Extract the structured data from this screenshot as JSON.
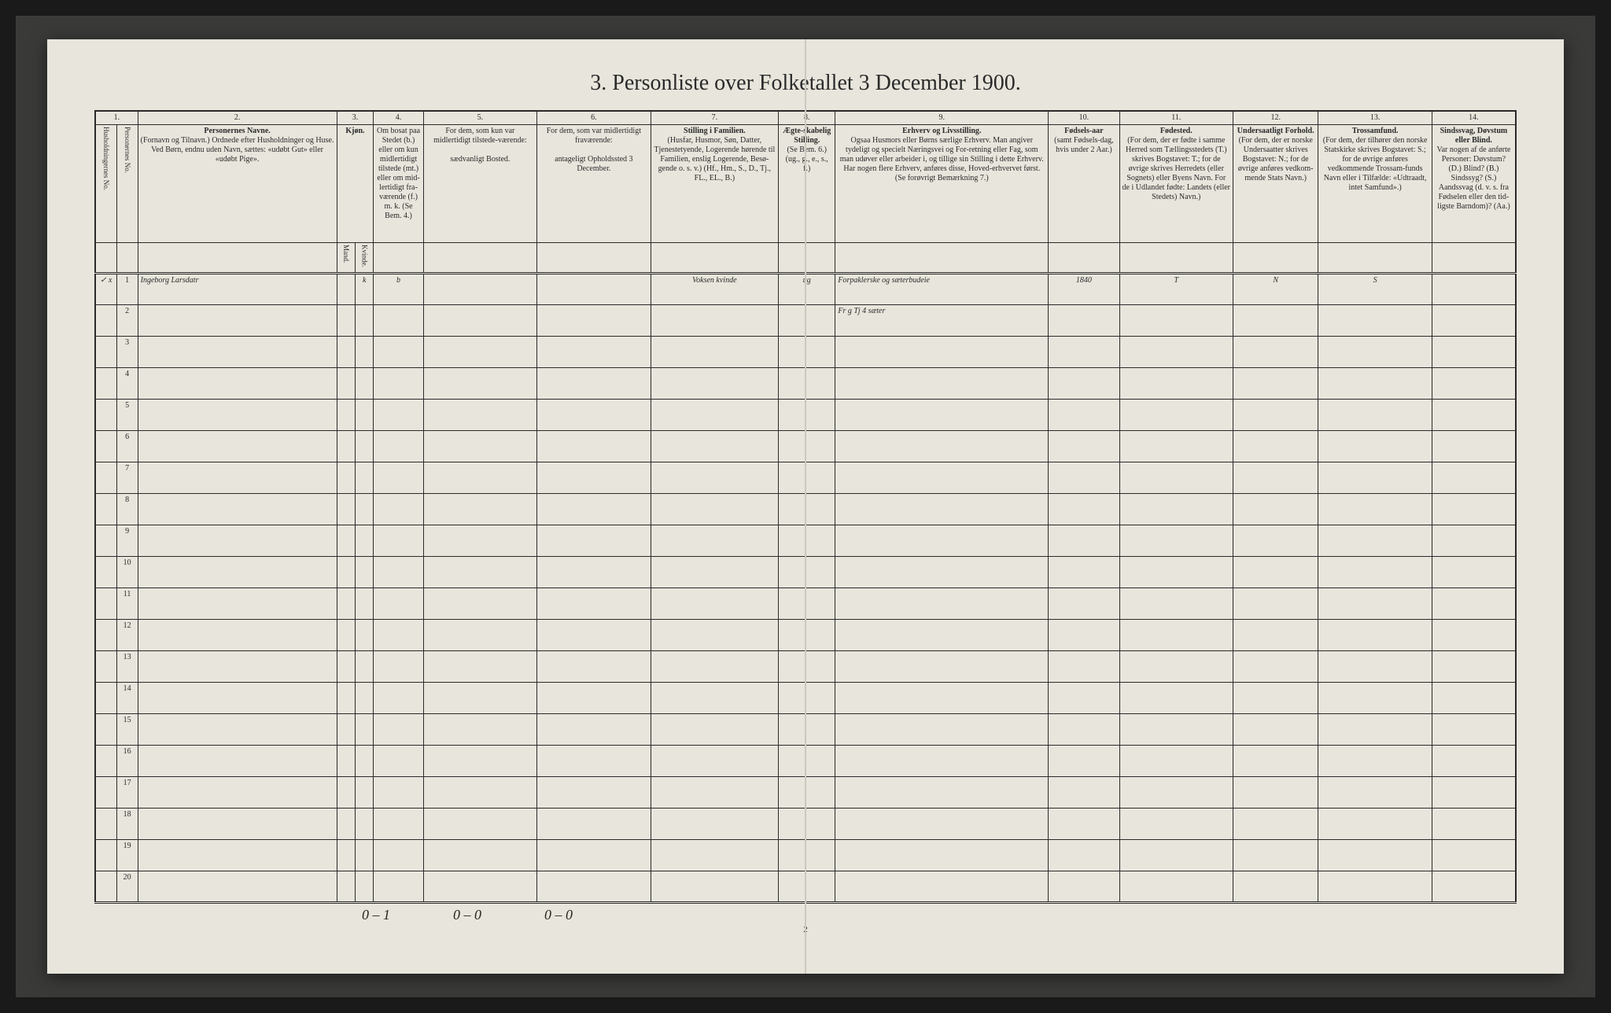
{
  "title": "3. Personliste over Folketallet 3 December 1900.",
  "page_number": "2",
  "columns": {
    "nums": [
      "1.",
      "2.",
      "3.",
      "4.",
      "5.",
      "6.",
      "7.",
      "8.",
      "9.",
      "10.",
      "11.",
      "12.",
      "13.",
      "14."
    ],
    "h1": "Husholdningernes No.",
    "h1b": "Personernes No.",
    "h2_title": "Personernes Navne.",
    "h2_sub": "(Fornavn og Tilnavn.)\nOrdnede efter Husholdninger og Huse. Ved Børn, endnu uden Navn, sættes: «udøbt Gut» eller «udøbt Pige».",
    "h3_title": "Kjøn.",
    "h3_sub": "Mand.",
    "h3_sub2": "Kvinde.",
    "h4_title": "Om bosat paa Stedet (b.) eller om kun midlertidigt tilstede (mt.) eller om mid-lertidigt fra-værende (f.)",
    "h4_sub": "m. k. (Se Bem. 4.)",
    "h5_title": "For dem, som kun var midlertidigt tilstede-værende:",
    "h5_sub": "sædvanligt Bosted.",
    "h6_title": "For dem, som var midlertidigt fraværende:",
    "h6_sub": "antageligt Opholdssted 3 December.",
    "h7_title": "Stilling i Familien.",
    "h7_sub": "(Husfar, Husmor, Søn, Datter, Tjenestetyende, Logerende hørende til Familien, enslig Logerende, Besø-gende o. s. v.)\n(Hf., Hm., S., D., Tj., FL., EL., B.)",
    "h8_title": "Ægte-skabelig Stilling.",
    "h8_sub": "(Se Bem. 6.)\n(ug., g., e., s., f.)",
    "h9_title": "Erhverv og Livsstilling.",
    "h9_sub": "Ogsaa Husmors eller Børns særlige Erhverv. Man angiver tydeligt og specielt Næringsvei og For-retning eller Fag, som man udøver eller arbeider i, og tillige sin Stilling i dette Erhverv. Har nogen flere Erhverv, anføres disse, Hoved-erhvervet først.\n(Se forøvrigt Bemærkning 7.)",
    "h10_title": "Fødsels-aar",
    "h10_sub": "(samt Fødsels-dag, hvis under 2 Aar.)",
    "h11_title": "Fødested.",
    "h11_sub": "(For dem, der er fødte i samme Herred som Tællingsstedets (T.) skrives Bogstavet: T.; for de øvrige skrives Herredets (eller Sognets) eller Byens Navn. For de i Udlandet fødte: Landets (eller Stedets) Navn.)",
    "h12_title": "Undersaatligt Forhold.",
    "h12_sub": "(For dem, der er norske Undersaatter skrives Bogstavet: N.; for de øvrige anføres vedkom-mende Stats Navn.)",
    "h13_title": "Trossamfund.",
    "h13_sub": "(For dem, der tilhører den norske Statskirke skrives Bogstavet: S.; for de øvrige anføres vedkommende Trossam-funds Navn eller i Tilfælde: «Udtraadt, intet Samfund».)",
    "h14_title": "Sindssvag, Døvstum eller Blind.",
    "h14_sub": "Var nogen af de anførte Personer: Døvstum? (D.) Blind? (B.) Sindssyg? (S.) Aandssvag (d. v. s. fra Fødselen eller den tid-ligste Barndom)? (Aa.)"
  },
  "rows": [
    {
      "mark": "✓ x",
      "num": "1",
      "name": "Ingeborg Larsdatr",
      "sex_k": "k",
      "bosat": "b",
      "col5": "",
      "col6": "",
      "col7": "Voksen kvinde",
      "col8": "ug",
      "col9": "Forpaklerske og sæterbudeie",
      "col10": "1840",
      "col11": "T",
      "col12": "N",
      "col13": "S",
      "col14": ""
    },
    {
      "mark": "",
      "num": "2",
      "name": "",
      "sex_k": "",
      "bosat": "",
      "col5": "",
      "col6": "",
      "col7": "",
      "col8": "",
      "col9": "Fr g Tj 4 sæter",
      "col10": "",
      "col11": "",
      "col12": "",
      "col13": "",
      "col14": ""
    }
  ],
  "blank_rows": [
    "3",
    "4",
    "5",
    "6",
    "7",
    "8",
    "9",
    "10",
    "11",
    "12",
    "13",
    "14",
    "15",
    "16",
    "17",
    "18",
    "19",
    "20"
  ],
  "footer_notes": [
    "0 – 1",
    "0 – 0",
    "0 – 0"
  ],
  "colors": {
    "paper": "#e8e5dc",
    "ink": "#2a2a2a",
    "frame": "#3a3a38",
    "handwriting": "#2a2520"
  },
  "col_widths_pct": [
    1.5,
    1.5,
    14,
    1.3,
    1.3,
    3.5,
    8,
    8,
    9,
    4,
    15,
    5,
    8,
    6,
    8,
    7
  ]
}
